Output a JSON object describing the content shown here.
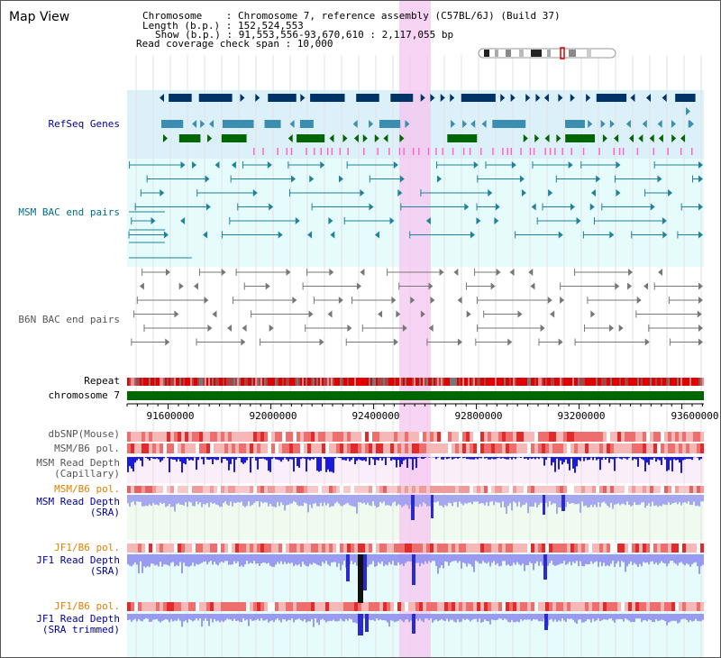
{
  "title": "Map View",
  "header": {
    "chromosome": "Chromosome    : Chromosome 7, reference assembly (C57BL/6J) (Build 37)",
    "length": "Length (b.p.) : 152,524,553",
    "show": "Show (b.p.) : 91,553,556-93,670,610 : 2,117,055 bp",
    "coverage": "Read coverage check span : 10,000"
  },
  "tracks": {
    "refseq": "RefSeq Genes",
    "msm_bac": "MSM BAC end pairs",
    "b6n_bac": "B6N BAC end pairs",
    "repeat": "Repeat",
    "chromosome": "chromosome 7",
    "dbsnp": "dbSNP(Mouse)",
    "msm_b6_pol": "MSM/B6 pol.",
    "msm_depth_cap": "MSM Read Depth\n(Capillary)",
    "msm_b6_pol_orange": "MSM/B6 pol.",
    "msm_depth_sra": "MSM Read Depth\n(SRA)",
    "jf1_b6_pol": "JF1/B6 pol.",
    "jf1_depth_sra": "JF1 Read Depth\n(SRA)",
    "jf1_b6_pol_2": "JF1/B6 pol.",
    "jf1_depth_trim": "JF1 Read Depth\n(SRA trimmed)"
  },
  "axis": {
    "ticks": [
      "91600000",
      "92000000",
      "92400000",
      "92800000",
      "93200000",
      "93600000"
    ]
  },
  "colors": {
    "refseq_dark": "#003366",
    "refseq_teal": "#3b8eb0",
    "refseq_green": "#006600",
    "highlight": "#f5c6f0",
    "label_blue": "#000099",
    "label_teal": "#006c8c",
    "label_gray": "#555555",
    "label_orange": "#e08000",
    "chromosome_green": "#006600"
  }
}
